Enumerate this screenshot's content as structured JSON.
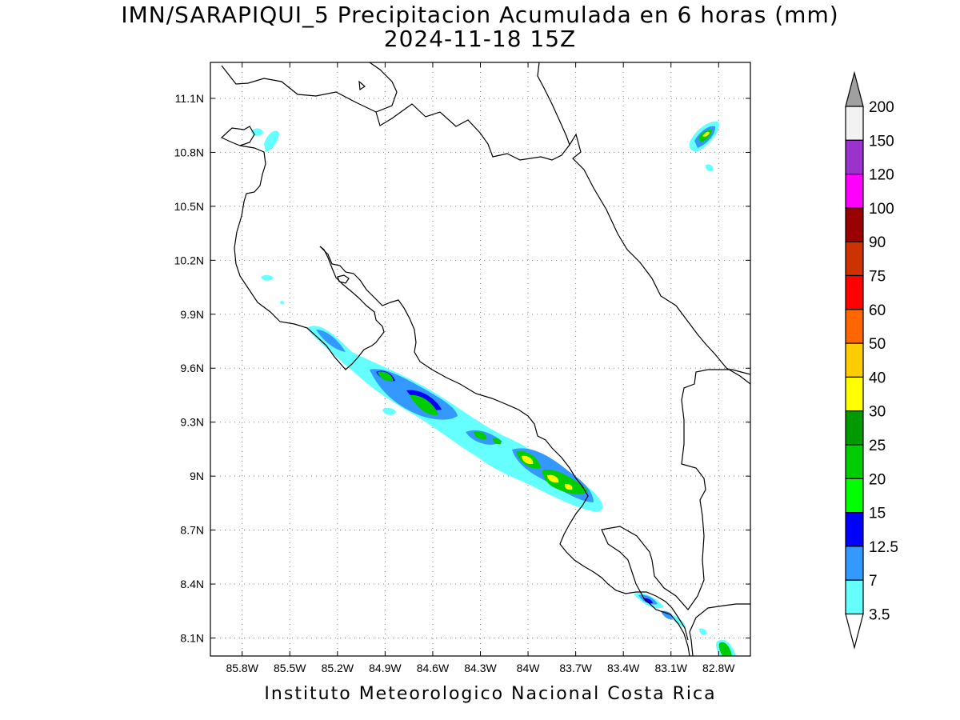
{
  "title": "IMN/SARAPIQUI_5 Precipitacion Acumulada en 6 horas (mm)",
  "subtitle": "2024-11-18 15Z",
  "footer": "Instituto Meteorologico Nacional Costa Rica",
  "map": {
    "lon_range": [
      -86.0,
      -82.6
    ],
    "lat_range": [
      8.0,
      11.3
    ],
    "lon_ticks": [
      {
        "value": -85.8,
        "label": "85.8W"
      },
      {
        "value": -85.5,
        "label": "85.5W"
      },
      {
        "value": -85.2,
        "label": "85.2W"
      },
      {
        "value": -84.9,
        "label": "84.9W"
      },
      {
        "value": -84.6,
        "label": "84.6W"
      },
      {
        "value": -84.3,
        "label": "84.3W"
      },
      {
        "value": -84.0,
        "label": "84W"
      },
      {
        "value": -83.7,
        "label": "83.7W"
      },
      {
        "value": -83.4,
        "label": "83.4W"
      },
      {
        "value": -83.1,
        "label": "83.1W"
      },
      {
        "value": -82.8,
        "label": "82.8W"
      }
    ],
    "lat_ticks": [
      {
        "value": 11.1,
        "label": "11.1N"
      },
      {
        "value": 10.8,
        "label": "10.8N"
      },
      {
        "value": 10.5,
        "label": "10.5N"
      },
      {
        "value": 10.2,
        "label": "10.2N"
      },
      {
        "value": 9.9,
        "label": "9.9N"
      },
      {
        "value": 9.6,
        "label": "9.6N"
      },
      {
        "value": 9.3,
        "label": "9.3N"
      },
      {
        "value": 9.0,
        "label": "9N"
      },
      {
        "value": 8.7,
        "label": "8.7N"
      },
      {
        "value": 8.4,
        "label": "8.4N"
      },
      {
        "value": 8.1,
        "label": "8.1N"
      }
    ],
    "grid": true,
    "precip_cells": [
      {
        "lon": -85.2,
        "lat": 9.8,
        "level": 7
      },
      {
        "lon": -84.9,
        "lat": 9.56,
        "level": 20
      },
      {
        "lon": -84.6,
        "lat": 9.42,
        "level": 20
      },
      {
        "lon": -84.25,
        "lat": 9.22,
        "level": 15
      },
      {
        "lon": -83.95,
        "lat": 9.1,
        "level": 30
      },
      {
        "lon": -83.78,
        "lat": 8.99,
        "level": 40
      },
      {
        "lon": -83.68,
        "lat": 8.93,
        "level": 30
      },
      {
        "lon": -82.88,
        "lat": 10.92,
        "level": 30
      },
      {
        "lon": -83.14,
        "lat": 8.3,
        "level": 15
      },
      {
        "lon": -82.78,
        "lat": 8.06,
        "level": 25
      }
    ]
  },
  "colorbar": {
    "labels": [
      "200",
      "150",
      "120",
      "100",
      "90",
      "75",
      "60",
      "50",
      "40",
      "30",
      "25",
      "20",
      "15",
      "12.5",
      "7",
      "3.5"
    ],
    "colors": {
      "top_arrow": "#a0a0a0",
      "bottom_arrow": "#ffffff",
      "bins": [
        "#f2f2f2",
        "#9933cc",
        "#ff00ff",
        "#990000",
        "#cc3300",
        "#ff0000",
        "#ff6600",
        "#ffcc00",
        "#ffff00",
        "#009900",
        "#00cc00",
        "#00ff00",
        "#0000ff",
        "#3399ff",
        "#66ffff"
      ]
    },
    "level_colors": {
      "3.5": "#66ffff",
      "7": "#3399ff",
      "12.5": "#0000ff",
      "15": "#00ff00",
      "20": "#00cc00",
      "25": "#009900",
      "30": "#ffff00",
      "40": "#ffcc00"
    }
  }
}
